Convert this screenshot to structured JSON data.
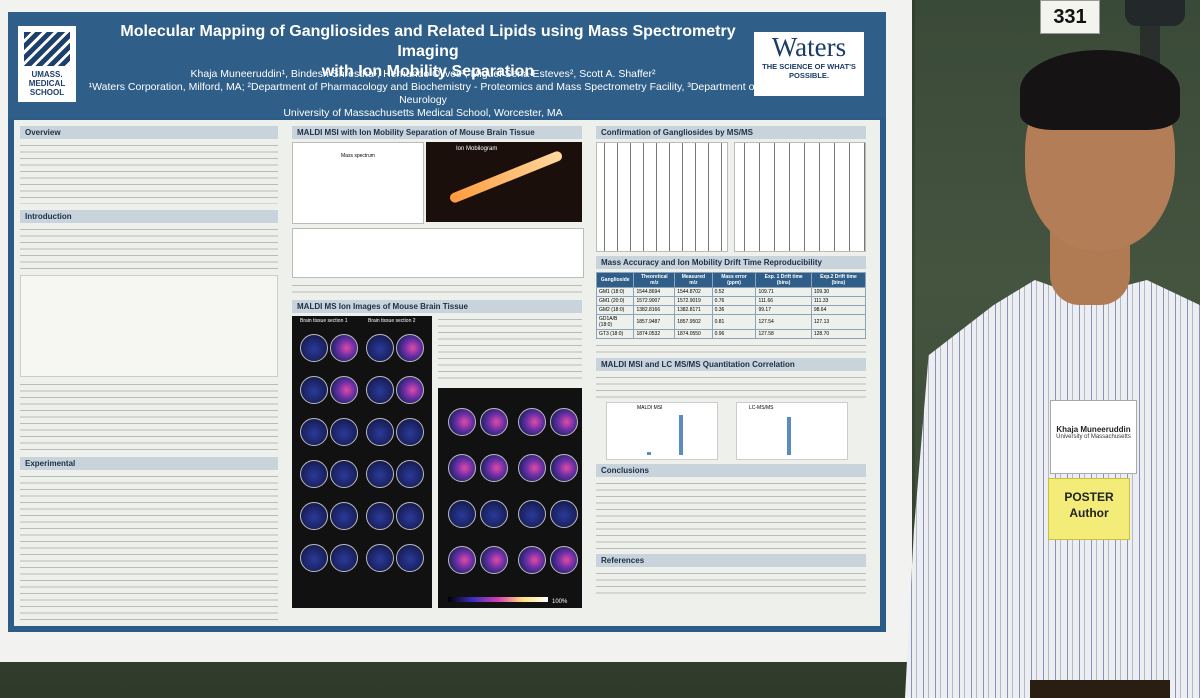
{
  "booth_number": "331",
  "poster": {
    "umass_logo": "UMASS. MEDICAL SCHOOL",
    "title_line1": "Molecular Mapping of Gangliosides and Related Lipids using Mass Spectrometry Imaging",
    "title_line2": "with Ion Mobility Separation",
    "authors": "Khaja Muneeruddin¹, Bindesh Shrestha¹, Hernando Olivos¹, Miguel Sena-Esteves², Scott A. Shaffer²",
    "affiliations": "¹Waters Corporation, Milford, MA; ²Department of Pharmacology and Biochemistry - Proteomics and Mass Spectrometry Facility, ³Department of Neurology",
    "university": "University of Massachusetts Medical School, Worcester, MA",
    "waters_logo": "Waters",
    "waters_tagline": "THE SCIENCE OF WHAT'S POSSIBLE.",
    "sections": {
      "overview": "Overview",
      "introduction": "Introduction",
      "experimental": "Experimental",
      "maldi_ims": "MALDI MSI with Ion Mobility Separation  of Mouse Brain Tissue",
      "ion_images": "MALDI MS Ion Images of Mouse Brain Tissue",
      "confirmation": "Confirmation of Gangliosides by MS/MS",
      "mass_accuracy": "Mass Accuracy and Ion Mobility Drift Time Reproducibility",
      "quantitation": "MALDI MSI and LC MS/MS Quantitation Correlation",
      "conclusions": "Conclusions",
      "references": "References"
    },
    "labels": {
      "mass_spectrum": "Mass spectrum",
      "ion_mobilogram": "Ion Mobilogram",
      "maldi_msi": "MALDI MSI",
      "lc_msms": "LC-MS/MS",
      "brain_section_1": "Brain tissue section 1",
      "brain_section_2": "Brain tissue section 2",
      "scale_end": "100%"
    },
    "table": {
      "headers": [
        "Ganglioside",
        "Theoretical m/z",
        "Measured m/z",
        "Mass error (ppm)",
        "Exp. 1 Drift time (bins)",
        "Exp.2 Drift time (bins)"
      ],
      "rows": [
        [
          "GM1 (18:0)",
          "1544.8694",
          "1544.8702",
          "0.52",
          "109.71",
          "109.30"
        ],
        [
          "GM1 (20:0)",
          "1572.9007",
          "1572.9019",
          "0.76",
          "111.66",
          "111.33"
        ],
        [
          "GM2 (18:0)",
          "1382.8166",
          "1382.8171",
          "0.36",
          "99.17",
          "98.64"
        ],
        [
          "GD1A/B (18:0)",
          "1857.9487",
          "1857.9502",
          "0.81",
          "127.54",
          "127.13"
        ],
        [
          "GT3 (18:0)",
          "1874.0532",
          "1874.0550",
          "0.96",
          "127.58",
          "128.70"
        ]
      ]
    }
  },
  "badge": {
    "name": "Khaja Muneeruddin",
    "org": "University of Massachusetts"
  },
  "ribbon": {
    "line1": "POSTER",
    "line2": "Author"
  }
}
